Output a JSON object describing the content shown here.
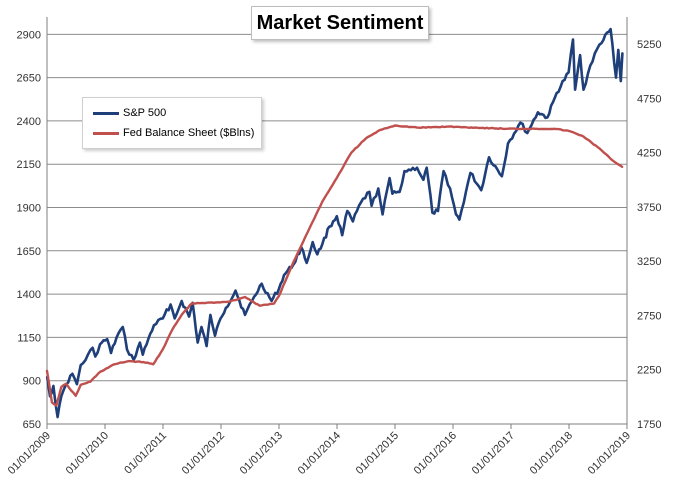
{
  "chart_data": {
    "type": "line",
    "title": "Market Sentiment",
    "xlabel": "",
    "ylabel": "",
    "grid": true,
    "legend_position": "top-left",
    "x_ticks": [
      "01/01/2009",
      "01/01/2010",
      "01/01/2011",
      "01/01/2012",
      "01/01/2013",
      "01/01/2014",
      "01/01/2015",
      "01/01/2016",
      "01/01/2017",
      "01/01/2018",
      "01/01/2019"
    ],
    "y_left": {
      "ylim": [
        650,
        3000
      ],
      "ticks": [
        "650",
        "900",
        "1150",
        "1400",
        "1650",
        "1900",
        "2150",
        "2400",
        "2650",
        "2900"
      ]
    },
    "y_right": {
      "ylim": [
        1750,
        5500
      ],
      "ticks": [
        "1750",
        "2250",
        "2750",
        "3250",
        "3750",
        "4250",
        "4750",
        "5250"
      ]
    },
    "series": [
      {
        "name": "S&P 500",
        "axis": "left",
        "color": "#1f3f7a",
        "points": [
          [
            "2009-01-02",
            920
          ],
          [
            "2009-01-20",
            810
          ],
          [
            "2009-02-10",
            870
          ],
          [
            "2009-03-09",
            690
          ],
          [
            "2009-04-01",
            810
          ],
          [
            "2009-05-01",
            880
          ],
          [
            "2009-06-10",
            940
          ],
          [
            "2009-07-08",
            880
          ],
          [
            "2009-08-01",
            990
          ],
          [
            "2009-09-01",
            1020
          ],
          [
            "2009-10-15",
            1090
          ],
          [
            "2009-11-01",
            1040
          ],
          [
            "2009-12-01",
            1110
          ],
          [
            "2010-01-15",
            1140
          ],
          [
            "2010-02-08",
            1060
          ],
          [
            "2010-03-15",
            1150
          ],
          [
            "2010-04-23",
            1210
          ],
          [
            "2010-05-20",
            1080
          ],
          [
            "2010-07-01",
            1020
          ],
          [
            "2010-08-09",
            1120
          ],
          [
            "2010-08-27",
            1050
          ],
          [
            "2010-10-01",
            1140
          ],
          [
            "2010-11-05",
            1220
          ],
          [
            "2010-12-31",
            1260
          ],
          [
            "2011-02-18",
            1340
          ],
          [
            "2011-03-16",
            1260
          ],
          [
            "2011-04-29",
            1360
          ],
          [
            "2011-06-15",
            1270
          ],
          [
            "2011-07-07",
            1350
          ],
          [
            "2011-08-08",
            1120
          ],
          [
            "2011-09-01",
            1210
          ],
          [
            "2011-10-03",
            1100
          ],
          [
            "2011-10-27",
            1280
          ],
          [
            "2011-11-25",
            1160
          ],
          [
            "2011-12-30",
            1260
          ],
          [
            "2012-02-01",
            1320
          ],
          [
            "2012-04-02",
            1420
          ],
          [
            "2012-06-01",
            1280
          ],
          [
            "2012-07-15",
            1360
          ],
          [
            "2012-09-14",
            1460
          ],
          [
            "2012-11-15",
            1360
          ],
          [
            "2012-12-31",
            1430
          ],
          [
            "2013-02-01",
            1510
          ],
          [
            "2013-04-01",
            1570
          ],
          [
            "2013-05-21",
            1670
          ],
          [
            "2013-06-24",
            1580
          ],
          [
            "2013-08-01",
            1700
          ],
          [
            "2013-08-30",
            1630
          ],
          [
            "2013-10-01",
            1690
          ],
          [
            "2013-11-15",
            1790
          ],
          [
            "2013-12-31",
            1850
          ],
          [
            "2014-02-03",
            1740
          ],
          [
            "2014-03-07",
            1880
          ],
          [
            "2014-04-11",
            1820
          ],
          [
            "2014-06-01",
            1930
          ],
          [
            "2014-07-24",
            1990
          ],
          [
            "2014-08-07",
            1910
          ],
          [
            "2014-09-18",
            2010
          ],
          [
            "2014-10-15",
            1860
          ],
          [
            "2014-11-28",
            2070
          ],
          [
            "2014-12-16",
            1980
          ],
          [
            "2015-01-30",
            1990
          ],
          [
            "2015-03-02",
            2110
          ],
          [
            "2015-05-20",
            2130
          ],
          [
            "2015-06-29",
            2060
          ],
          [
            "2015-07-20",
            2130
          ],
          [
            "2015-08-25",
            1870
          ],
          [
            "2015-09-29",
            1880
          ],
          [
            "2015-11-03",
            2110
          ],
          [
            "2015-12-14",
            2010
          ],
          [
            "2016-01-20",
            1860
          ],
          [
            "2016-02-11",
            1830
          ],
          [
            "2016-04-20",
            2100
          ],
          [
            "2016-06-27",
            2000
          ],
          [
            "2016-08-15",
            2190
          ],
          [
            "2016-11-04",
            2080
          ],
          [
            "2016-12-13",
            2270
          ],
          [
            "2017-03-01",
            2390
          ],
          [
            "2017-04-13",
            2330
          ],
          [
            "2017-06-19",
            2450
          ],
          [
            "2017-08-18",
            2420
          ],
          [
            "2017-10-15",
            2560
          ],
          [
            "2017-12-29",
            2680
          ],
          [
            "2018-01-26",
            2870
          ],
          [
            "2018-02-08",
            2580
          ],
          [
            "2018-03-12",
            2780
          ],
          [
            "2018-04-02",
            2580
          ],
          [
            "2018-05-15",
            2720
          ],
          [
            "2018-06-12",
            2790
          ],
          [
            "2018-07-25",
            2850
          ],
          [
            "2018-08-29",
            2910
          ],
          [
            "2018-09-20",
            2930
          ],
          [
            "2018-10-24",
            2650
          ],
          [
            "2018-11-07",
            2810
          ],
          [
            "2018-11-23",
            2630
          ],
          [
            "2018-12-03",
            2790
          ]
        ]
      },
      {
        "name": "Fed Balance Sheet ($Blns)",
        "axis": "right",
        "color": "#c0504d",
        "points": [
          [
            "2009-01-01",
            2240
          ],
          [
            "2009-02-01",
            1950
          ],
          [
            "2009-03-01",
            1920
          ],
          [
            "2009-04-01",
            2090
          ],
          [
            "2009-05-01",
            2120
          ],
          [
            "2009-06-01",
            2060
          ],
          [
            "2009-07-01",
            2010
          ],
          [
            "2009-08-01",
            2110
          ],
          [
            "2009-10-01",
            2140
          ],
          [
            "2009-12-01",
            2230
          ],
          [
            "2010-03-01",
            2300
          ],
          [
            "2010-06-01",
            2330
          ],
          [
            "2010-09-01",
            2320
          ],
          [
            "2010-11-01",
            2300
          ],
          [
            "2011-01-01",
            2440
          ],
          [
            "2011-03-01",
            2620
          ],
          [
            "2011-05-01",
            2760
          ],
          [
            "2011-07-01",
            2860
          ],
          [
            "2011-12-01",
            2870
          ],
          [
            "2012-03-01",
            2880
          ],
          [
            "2012-06-01",
            2920
          ],
          [
            "2012-09-01",
            2840
          ],
          [
            "2012-12-01",
            2860
          ],
          [
            "2013-01-01",
            2930
          ],
          [
            "2013-04-01",
            3240
          ],
          [
            "2013-07-01",
            3520
          ],
          [
            "2013-10-01",
            3800
          ],
          [
            "2014-01-01",
            4020
          ],
          [
            "2014-04-01",
            4250
          ],
          [
            "2014-07-01",
            4380
          ],
          [
            "2014-10-01",
            4460
          ],
          [
            "2015-01-01",
            4500
          ],
          [
            "2015-06-01",
            4480
          ],
          [
            "2015-12-01",
            4490
          ],
          [
            "2016-06-01",
            4480
          ],
          [
            "2016-12-01",
            4470
          ],
          [
            "2017-06-01",
            4470
          ],
          [
            "2017-10-01",
            4470
          ],
          [
            "2018-01-01",
            4450
          ],
          [
            "2018-04-01",
            4400
          ],
          [
            "2018-07-01",
            4300
          ],
          [
            "2018-10-01",
            4180
          ],
          [
            "2018-12-01",
            4120
          ]
        ]
      }
    ]
  }
}
